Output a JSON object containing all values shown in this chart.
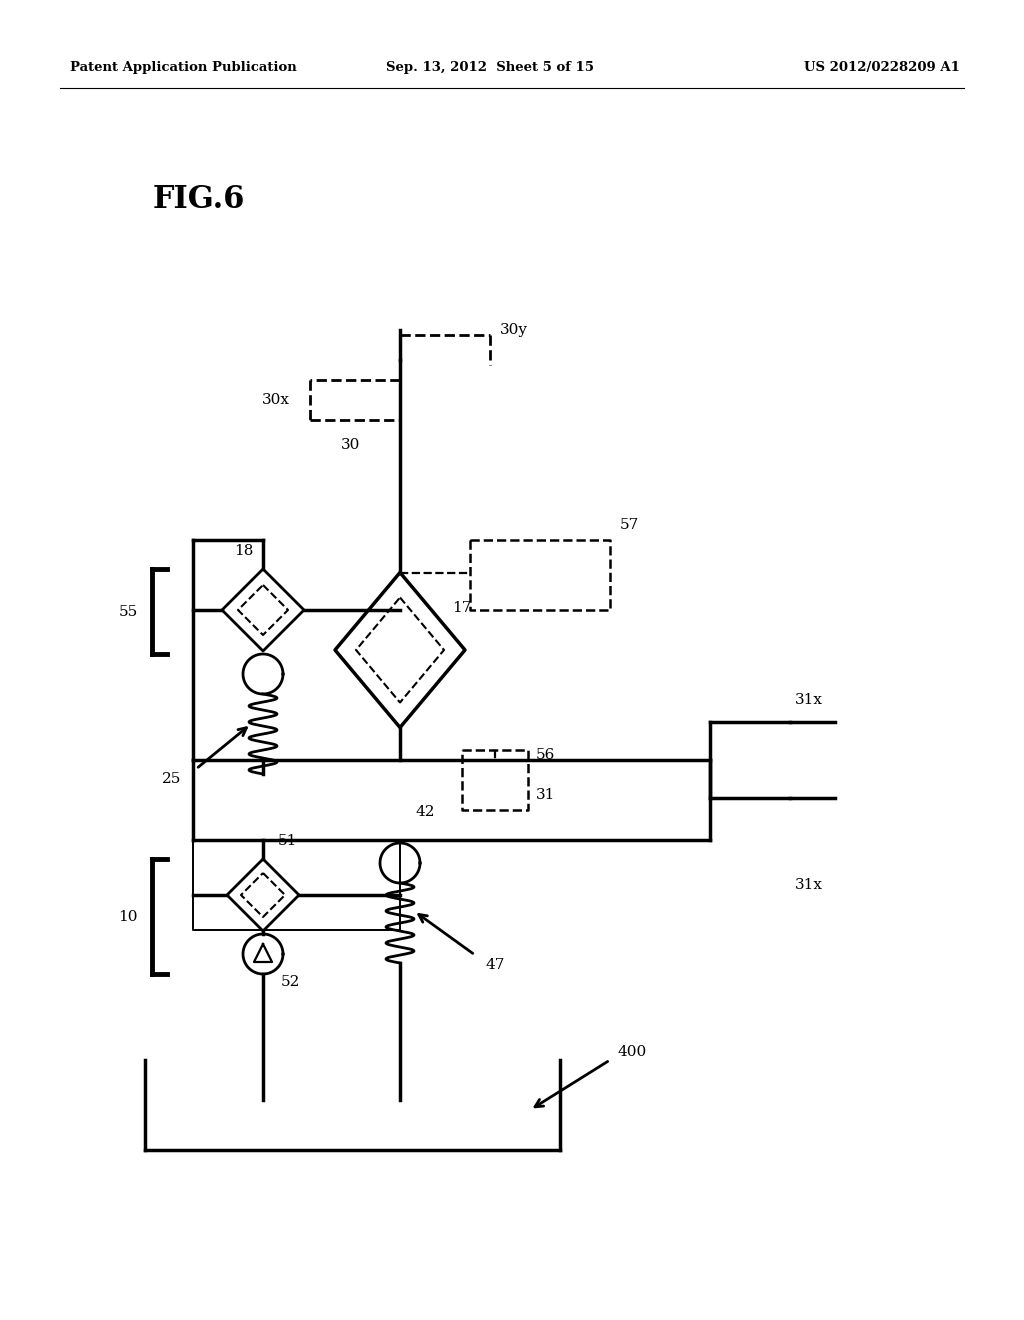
{
  "bg_color": "#ffffff",
  "line_color": "#000000",
  "header_left": "Patent Application Publication",
  "header_center": "Sep. 13, 2012  Sheet 5 of 15",
  "header_right": "US 2012/0228209 A1",
  "fig_title": "FIG.6"
}
